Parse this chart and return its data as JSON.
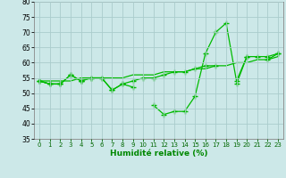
{
  "x": [
    0,
    1,
    2,
    3,
    4,
    5,
    6,
    7,
    8,
    9,
    10,
    11,
    12,
    13,
    14,
    15,
    16,
    17,
    18,
    19,
    20,
    21,
    22,
    23
  ],
  "line1": [
    54,
    53,
    53,
    56,
    54,
    55,
    55,
    51,
    53,
    52,
    null,
    46,
    43,
    44,
    44,
    49,
    63,
    70,
    73,
    54,
    62,
    62,
    62,
    63
  ],
  "line2": [
    54,
    53,
    53,
    56,
    54,
    55,
    55,
    51,
    53,
    54,
    55,
    55,
    56,
    57,
    57,
    58,
    59,
    59,
    null,
    53,
    62,
    null,
    61,
    63
  ],
  "line3": [
    54,
    53,
    53,
    null,
    54,
    null,
    null,
    null,
    null,
    null,
    null,
    null,
    null,
    null,
    null,
    null,
    null,
    null,
    null,
    null,
    null,
    null,
    null,
    null
  ],
  "trend": [
    54,
    54,
    54,
    54,
    55,
    55,
    55,
    55,
    55,
    56,
    56,
    56,
    57,
    57,
    57,
    58,
    58,
    59,
    59,
    60,
    60,
    61,
    61,
    62
  ],
  "bg_color": "#cce8e8",
  "grid_color": "#aacccc",
  "line_color": "#00bb00",
  "xlabel": "Humidité relative (%)",
  "xlabel_color": "#008800",
  "ylim": [
    35,
    80
  ],
  "xlim": [
    -0.5,
    23.5
  ],
  "yticks": [
    35,
    40,
    45,
    50,
    55,
    60,
    65,
    70,
    75,
    80
  ],
  "xticks": [
    0,
    1,
    2,
    3,
    4,
    5,
    6,
    7,
    8,
    9,
    10,
    11,
    12,
    13,
    14,
    15,
    16,
    17,
    18,
    19,
    20,
    21,
    22,
    23
  ]
}
